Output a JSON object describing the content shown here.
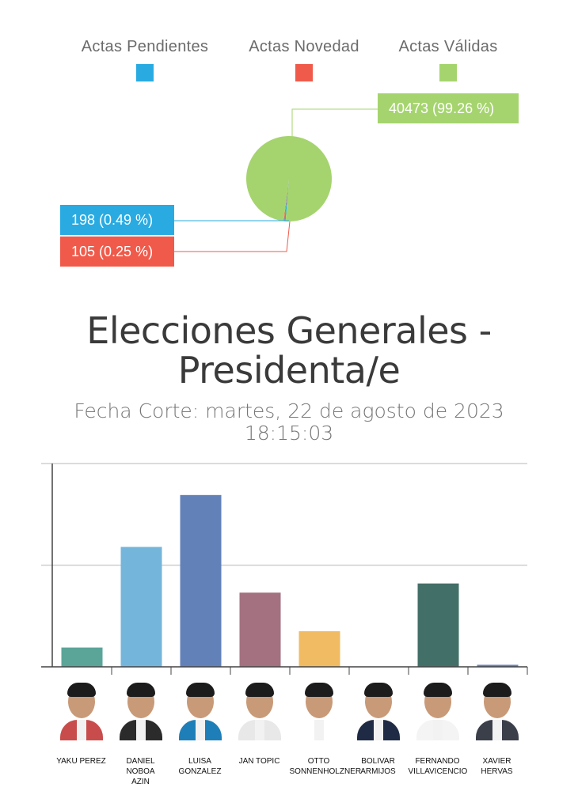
{
  "chart_data": [
    {
      "type": "pie",
      "legend": [
        {
          "label": "Actas Pendientes",
          "color": "#29abe2"
        },
        {
          "label": "Actas Novedad",
          "color": "#f05a4a"
        },
        {
          "label": "Actas Válidas",
          "color": "#a5d46e"
        }
      ],
      "slices": [
        {
          "category": "Actas Válidas",
          "value": 40473,
          "percent": 99.26,
          "label": "40473 (99.26 %)",
          "color": "#a5d46e"
        },
        {
          "category": "Actas Pendientes",
          "value": 198,
          "percent": 0.49,
          "label": "198 (0.49 %)",
          "color": "#29abe2"
        },
        {
          "category": "Actas Novedad",
          "value": 105,
          "percent": 0.25,
          "label": "105 (0.25 %)",
          "color": "#f05a4a"
        }
      ],
      "legend_position": "top"
    },
    {
      "type": "bar",
      "title": "Elecciones Generales - Presidenta/e",
      "subtitle": "Fecha Corte: martes, 22 de agosto de 2023 18:15:03",
      "categories": [
        "YAKU PEREZ",
        "DANIEL NOBOA AZIN",
        "LUISA GONZALEZ",
        "JAN TOPIC",
        "OTTO SONNENHOLZNER",
        "BOLIVAR ARMIJOS",
        "FERNANDO VILLAVICENCIO",
        "XAVIER HERVAS"
      ],
      "values": [
        0.095,
        0.59,
        0.845,
        0.365,
        0.175,
        0,
        0.41,
        0.01
      ],
      "colors": [
        "#5aa598",
        "#74b6db",
        "#6381b9",
        "#a37180",
        "#f0bb62",
        "#cccccc",
        "#436f69",
        "#6381b9"
      ],
      "ylim": [
        0,
        1
      ],
      "y_gridlines": [
        0.5,
        1
      ],
      "y_tick_labels": false,
      "grid": true
    }
  ],
  "candidates": [
    {
      "name_line1": "YAKU PEREZ",
      "name_line2": ""
    },
    {
      "name_line1": "DANIEL NOBOA",
      "name_line2": "AZIN"
    },
    {
      "name_line1": "LUISA",
      "name_line2": "GONZALEZ"
    },
    {
      "name_line1": "JAN TOPIC",
      "name_line2": ""
    },
    {
      "name_line1": "OTTO",
      "name_line2": "SONNENHOLZNER"
    },
    {
      "name_line1": "BOLIVAR",
      "name_line2": "ARMIJOS"
    },
    {
      "name_line1": "FERNANDO",
      "name_line2": "VILLAVICENCIO"
    },
    {
      "name_line1": "XAVIER HERVAS",
      "name_line2": ""
    }
  ],
  "title_line1": "Elecciones Generales -",
  "title_line2": "Presidenta/e",
  "subtitle_line1": "Fecha Corte: martes, 22 de agosto de 2023",
  "subtitle_line2": "18:15:03"
}
